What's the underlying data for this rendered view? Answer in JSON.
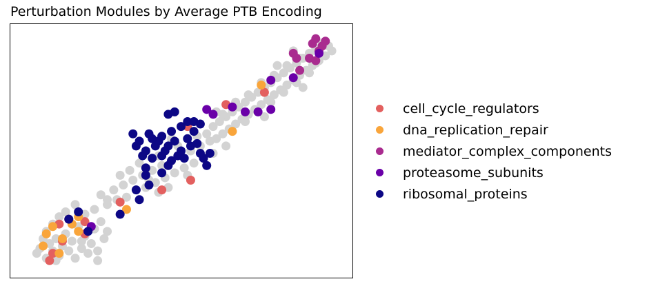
{
  "chart_data": {
    "type": "scatter",
    "title": "Perturbation Modules by Average PTB Encoding",
    "xlabel": "",
    "ylabel": "",
    "xlim": [
      0,
      100
    ],
    "ylim": [
      0,
      100
    ],
    "axes_ticks": false,
    "grid": false,
    "legend_placement": "right",
    "background_color": "#d3d3d3",
    "background_points": [
      [
        5,
        8
      ],
      [
        6,
        10
      ],
      [
        8,
        6
      ],
      [
        9,
        12
      ],
      [
        10,
        9
      ],
      [
        11,
        14
      ],
      [
        12,
        7
      ],
      [
        13,
        11
      ],
      [
        14,
        16
      ],
      [
        15,
        9
      ],
      [
        16,
        13
      ],
      [
        17,
        6
      ],
      [
        18,
        19
      ],
      [
        19,
        10
      ],
      [
        20,
        15
      ],
      [
        21,
        8
      ],
      [
        22,
        12
      ],
      [
        23,
        18
      ],
      [
        24,
        9
      ],
      [
        25,
        21
      ],
      [
        26,
        14
      ],
      [
        27,
        17
      ],
      [
        8,
        17
      ],
      [
        10,
        20
      ],
      [
        12,
        23
      ],
      [
        14,
        25
      ],
      [
        17,
        28
      ],
      [
        20,
        24
      ],
      [
        23,
        26
      ],
      [
        27,
        30
      ],
      [
        19,
        13
      ],
      [
        16,
        20
      ],
      [
        11,
        5
      ],
      [
        24,
        5
      ],
      [
        7,
        14
      ],
      [
        25,
        32
      ],
      [
        27,
        28
      ],
      [
        29,
        34
      ],
      [
        30,
        30
      ],
      [
        32,
        36
      ],
      [
        33,
        31
      ],
      [
        35,
        38
      ],
      [
        36,
        34
      ],
      [
        38,
        40
      ],
      [
        39,
        35
      ],
      [
        41,
        42
      ],
      [
        42,
        37
      ],
      [
        44,
        44
      ],
      [
        45,
        39
      ],
      [
        47,
        46
      ],
      [
        48,
        41
      ],
      [
        50,
        48
      ],
      [
        51,
        43
      ],
      [
        53,
        50
      ],
      [
        54,
        45
      ],
      [
        56,
        52
      ],
      [
        57,
        47
      ],
      [
        59,
        54
      ],
      [
        60,
        49
      ],
      [
        34,
        42
      ],
      [
        37,
        45
      ],
      [
        40,
        38
      ],
      [
        43,
        48
      ],
      [
        46,
        35
      ],
      [
        49,
        52
      ],
      [
        52,
        40
      ],
      [
        55,
        56
      ],
      [
        58,
        44
      ],
      [
        31,
        40
      ],
      [
        43,
        33
      ],
      [
        47,
        55
      ],
      [
        60,
        60
      ],
      [
        61,
        55
      ],
      [
        62,
        62
      ],
      [
        63,
        57
      ],
      [
        64,
        64
      ],
      [
        65,
        59
      ],
      [
        66,
        66
      ],
      [
        67,
        61
      ],
      [
        68,
        68
      ],
      [
        69,
        63
      ],
      [
        70,
        70
      ],
      [
        71,
        65
      ],
      [
        72,
        72
      ],
      [
        73,
        67
      ],
      [
        74,
        74
      ],
      [
        75,
        69
      ],
      [
        76,
        76
      ],
      [
        77,
        71
      ],
      [
        78,
        78
      ],
      [
        79,
        73
      ],
      [
        80,
        80
      ],
      [
        81,
        75
      ],
      [
        82,
        82
      ],
      [
        83,
        77
      ],
      [
        84,
        84
      ],
      [
        85,
        79
      ],
      [
        86,
        86
      ],
      [
        87,
        81
      ],
      [
        88,
        88
      ],
      [
        89,
        83
      ],
      [
        90,
        90
      ],
      [
        91,
        85
      ],
      [
        92,
        92
      ],
      [
        93,
        87
      ],
      [
        94,
        94
      ],
      [
        95,
        89
      ],
      [
        96,
        93
      ],
      [
        97,
        91
      ],
      [
        66,
        58
      ],
      [
        70,
        62
      ],
      [
        74,
        66
      ],
      [
        78,
        70
      ],
      [
        82,
        74
      ],
      [
        86,
        78
      ],
      [
        90,
        82
      ],
      [
        63,
        65
      ],
      [
        67,
        70
      ],
      [
        71,
        73
      ],
      [
        75,
        78
      ],
      [
        79,
        81
      ],
      [
        83,
        85
      ],
      [
        87,
        88
      ],
      [
        61,
        66
      ],
      [
        58,
        57
      ],
      [
        64,
        52
      ],
      [
        76,
        64
      ],
      [
        88,
        76
      ],
      [
        92,
        86
      ],
      [
        85,
        91
      ],
      [
        80,
        85
      ]
    ],
    "series": [
      {
        "name": "cell_cycle_regulators",
        "color": "#e3605f",
        "points": [
          [
            9,
            5
          ],
          [
            10,
            8
          ],
          [
            13,
            13
          ],
          [
            12,
            20
          ],
          [
            15,
            22
          ],
          [
            20,
            21
          ],
          [
            20,
            16
          ],
          [
            53,
            38
          ],
          [
            44,
            34
          ],
          [
            31,
            29
          ],
          [
            52,
            60
          ],
          [
            64,
            69
          ],
          [
            76,
            74
          ]
        ]
      },
      {
        "name": "dna_replication_repair",
        "color": "#f9a53b",
        "points": [
          [
            7,
            11
          ],
          [
            8,
            16
          ],
          [
            10,
            19
          ],
          [
            12,
            8
          ],
          [
            13,
            14
          ],
          [
            16,
            20
          ],
          [
            18,
            17
          ],
          [
            18,
            23
          ],
          [
            75,
            77
          ],
          [
            66,
            58
          ],
          [
            33,
            26
          ]
        ]
      },
      {
        "name": "mediator_complex_components",
        "color": "#a92b8f",
        "points": [
          [
            91,
            94
          ],
          [
            92,
            96
          ],
          [
            93,
            91
          ],
          [
            94,
            93
          ],
          [
            95,
            95
          ],
          [
            85,
            90
          ],
          [
            86,
            88
          ],
          [
            90,
            88
          ],
          [
            87,
            83
          ],
          [
            92,
            87
          ]
        ]
      },
      {
        "name": "proteasome_subunits",
        "color": "#6a00a8",
        "points": [
          [
            58,
            67
          ],
          [
            60,
            65
          ],
          [
            66,
            68
          ],
          [
            70,
            66
          ],
          [
            74,
            66
          ],
          [
            78,
            67
          ],
          [
            78,
            79
          ],
          [
            85,
            80
          ],
          [
            22,
            19
          ],
          [
            93,
            90
          ]
        ]
      },
      {
        "name": "ribosomal_proteins",
        "color": "#0c0785",
        "points": [
          [
            35,
            57
          ],
          [
            36,
            52
          ],
          [
            37,
            54
          ],
          [
            38,
            48
          ],
          [
            39,
            50
          ],
          [
            40,
            57
          ],
          [
            41,
            47
          ],
          [
            42,
            52
          ],
          [
            43,
            54
          ],
          [
            44,
            56
          ],
          [
            44,
            48
          ],
          [
            45,
            50
          ],
          [
            46,
            52
          ],
          [
            47,
            46
          ],
          [
            48,
            54
          ],
          [
            49,
            48
          ],
          [
            50,
            50
          ],
          [
            51,
            47
          ],
          [
            52,
            55
          ],
          [
            53,
            52
          ],
          [
            54,
            58
          ],
          [
            55,
            53
          ],
          [
            56,
            49
          ],
          [
            57,
            47
          ],
          [
            58,
            44
          ],
          [
            59,
            49
          ],
          [
            50,
            60
          ],
          [
            52,
            62
          ],
          [
            54,
            62
          ],
          [
            56,
            61
          ],
          [
            47,
            58
          ],
          [
            46,
            44
          ],
          [
            44,
            41
          ],
          [
            39,
            40
          ],
          [
            40,
            36
          ],
          [
            36,
            34
          ],
          [
            37,
            30
          ],
          [
            31,
            24
          ],
          [
            15,
            22
          ],
          [
            18,
            25
          ],
          [
            21,
            17
          ],
          [
            39,
            43
          ],
          [
            46,
            65
          ],
          [
            48,
            66
          ],
          [
            41,
            55
          ]
        ]
      }
    ]
  }
}
